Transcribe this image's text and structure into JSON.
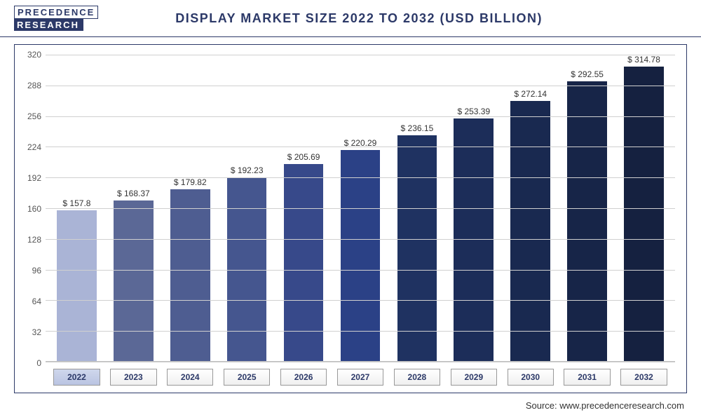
{
  "logo": {
    "line1": "PRECEDENCE",
    "line2": "RESEARCH"
  },
  "title": "DISPLAY MARKET SIZE 2022 TO 2032 (USD BILLION)",
  "source": "Source: www.precedenceresearch.com",
  "chart": {
    "type": "bar",
    "ymin": 0,
    "ymax": 320,
    "ytick_step": 32,
    "yticks": [
      0,
      32,
      64,
      96,
      128,
      160,
      192,
      224,
      256,
      288,
      320
    ],
    "categories": [
      "2022",
      "2023",
      "2024",
      "2025",
      "2026",
      "2027",
      "2028",
      "2029",
      "2030",
      "2031",
      "2032"
    ],
    "values": [
      157.8,
      168.37,
      179.82,
      192.23,
      205.69,
      220.29,
      236.15,
      253.39,
      272.14,
      292.55,
      314.78
    ],
    "value_labels": [
      "$ 157.8",
      "$ 168.37",
      "$ 179.82",
      "$ 192.23",
      "$ 205.69",
      "$ 220.29",
      "$ 236.15",
      "$ 253.39",
      "$ 272.14",
      "$ 292.55",
      "$ 314.78"
    ],
    "bar_colors": [
      "#aab4d6",
      "#5b6896",
      "#4e5d91",
      "#45568f",
      "#37498a",
      "#2b4186",
      "#1f3261",
      "#1c2d59",
      "#192950",
      "#172548",
      "#152140"
    ],
    "grid_color": "#d0d0d0",
    "axis_color": "#bfbfbf",
    "background_color": "#ffffff",
    "title_fontsize": 18,
    "label_fontsize": 12,
    "value_fontsize": 12,
    "bar_width": 0.7
  }
}
